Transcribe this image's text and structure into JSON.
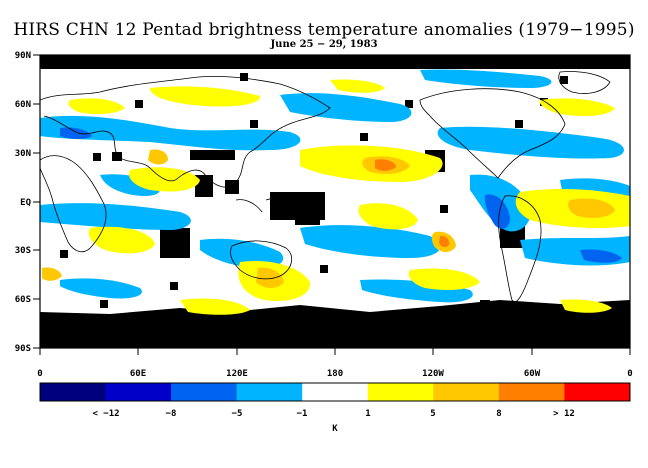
{
  "header": {
    "title": "HIRS CHN 12 Pentad brightness temperature anomalies (1979−1995)",
    "subtitle": "June 25 − 29, 1983"
  },
  "map": {
    "lat_labels": [
      "90N",
      "60N",
      "30N",
      "EQ",
      "30S",
      "60S",
      "90S"
    ],
    "lon_labels": [
      "0",
      "60E",
      "120E",
      "180",
      "120W",
      "60W",
      "0"
    ]
  },
  "colorbar": {
    "bins": [
      {
        "color": "#00007f"
      },
      {
        "color": "#0000c8"
      },
      {
        "color": "#0064f0"
      },
      {
        "color": "#00b4ff"
      },
      {
        "color": "#ffffff"
      },
      {
        "color": "#ffff00"
      },
      {
        "color": "#ffc800"
      },
      {
        "color": "#ff7f00"
      },
      {
        "color": "#ff0000"
      }
    ],
    "tick_labels": [
      "< −12",
      "−8",
      "−5",
      "−1",
      "1",
      "5",
      "8",
      "> 12"
    ],
    "unit": "K"
  },
  "colors": {
    "no_data": "#000000",
    "coastline": "#000000",
    "cold": "#00b4ff",
    "cold_strong": "#0064f0",
    "warm": "#ffff00",
    "warm_strong": "#ffc800",
    "warm_extreme": "#ff7f00"
  }
}
